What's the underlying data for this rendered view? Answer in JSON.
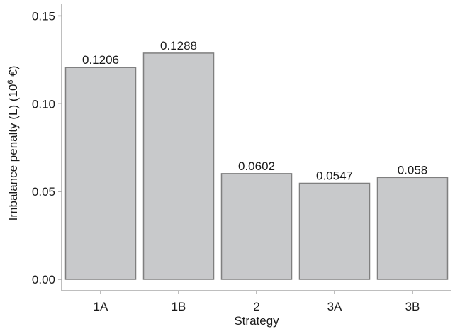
{
  "chart_data": {
    "type": "bar",
    "categories": [
      "1A",
      "1B",
      "2",
      "3A",
      "3B"
    ],
    "values": [
      0.1206,
      0.1288,
      0.0602,
      0.0547,
      0.058
    ],
    "data_labels": [
      "0.1206",
      "0.1288",
      "0.0602",
      "0.0547",
      "0.058"
    ],
    "title": "",
    "xlabel": "Strategy",
    "ylabel": "Imbalance penalty (L) (10",
    "ylabel_superscript": "6",
    "ylabel_suffix": " €)",
    "ylim": [
      0,
      0.155
    ],
    "yticks": [
      0,
      0.05,
      0.1,
      0.15
    ],
    "ytick_labels": [
      "0.00",
      "0.05",
      "0.10",
      "0.15"
    ],
    "grid": false,
    "legend": "none",
    "bar_color": "#c8c9cb",
    "bar_edge_color": "#7f7f7f",
    "axis_color": "#a8a8a8"
  }
}
